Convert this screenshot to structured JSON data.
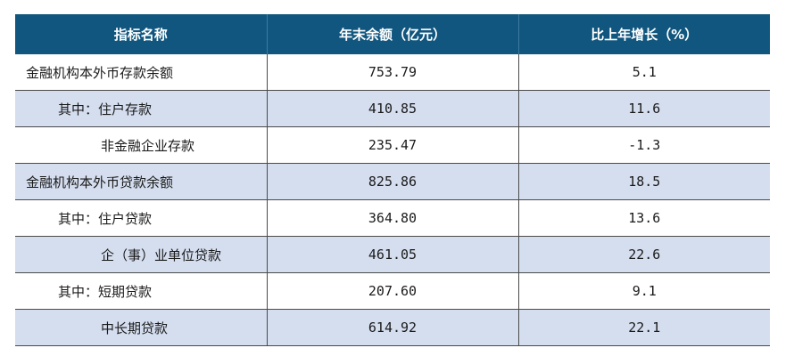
{
  "table": {
    "headers": [
      "指标名称",
      "年末余额（亿元）",
      "比上年增长（%）"
    ],
    "rows": [
      {
        "label": "金融机构本外币存款余额",
        "balance": "753.79",
        "growth": "5.1"
      },
      {
        "label": "其中：住户存款",
        "balance": "410.85",
        "growth": "11.6"
      },
      {
        "label": "非金融企业存款",
        "balance": "235.47",
        "growth": "-1.3"
      },
      {
        "label": "金融机构本外币贷款余额",
        "balance": "825.86",
        "growth": "18.5"
      },
      {
        "label": "其中：住户贷款",
        "balance": "364.80",
        "growth": "13.6"
      },
      {
        "label": "企（事）业单位贷款",
        "balance": "461.05",
        "growth": "22.6"
      },
      {
        "label": "其中：短期贷款",
        "balance": "207.60",
        "growth": "9.1"
      },
      {
        "label": "中长期贷款",
        "balance": "614.92",
        "growth": "22.1"
      }
    ]
  },
  "colors": {
    "header_bg": "#11567e",
    "header_text": "#ffffff",
    "row_shade": "#d5deef",
    "row_plain": "#ffffff"
  }
}
